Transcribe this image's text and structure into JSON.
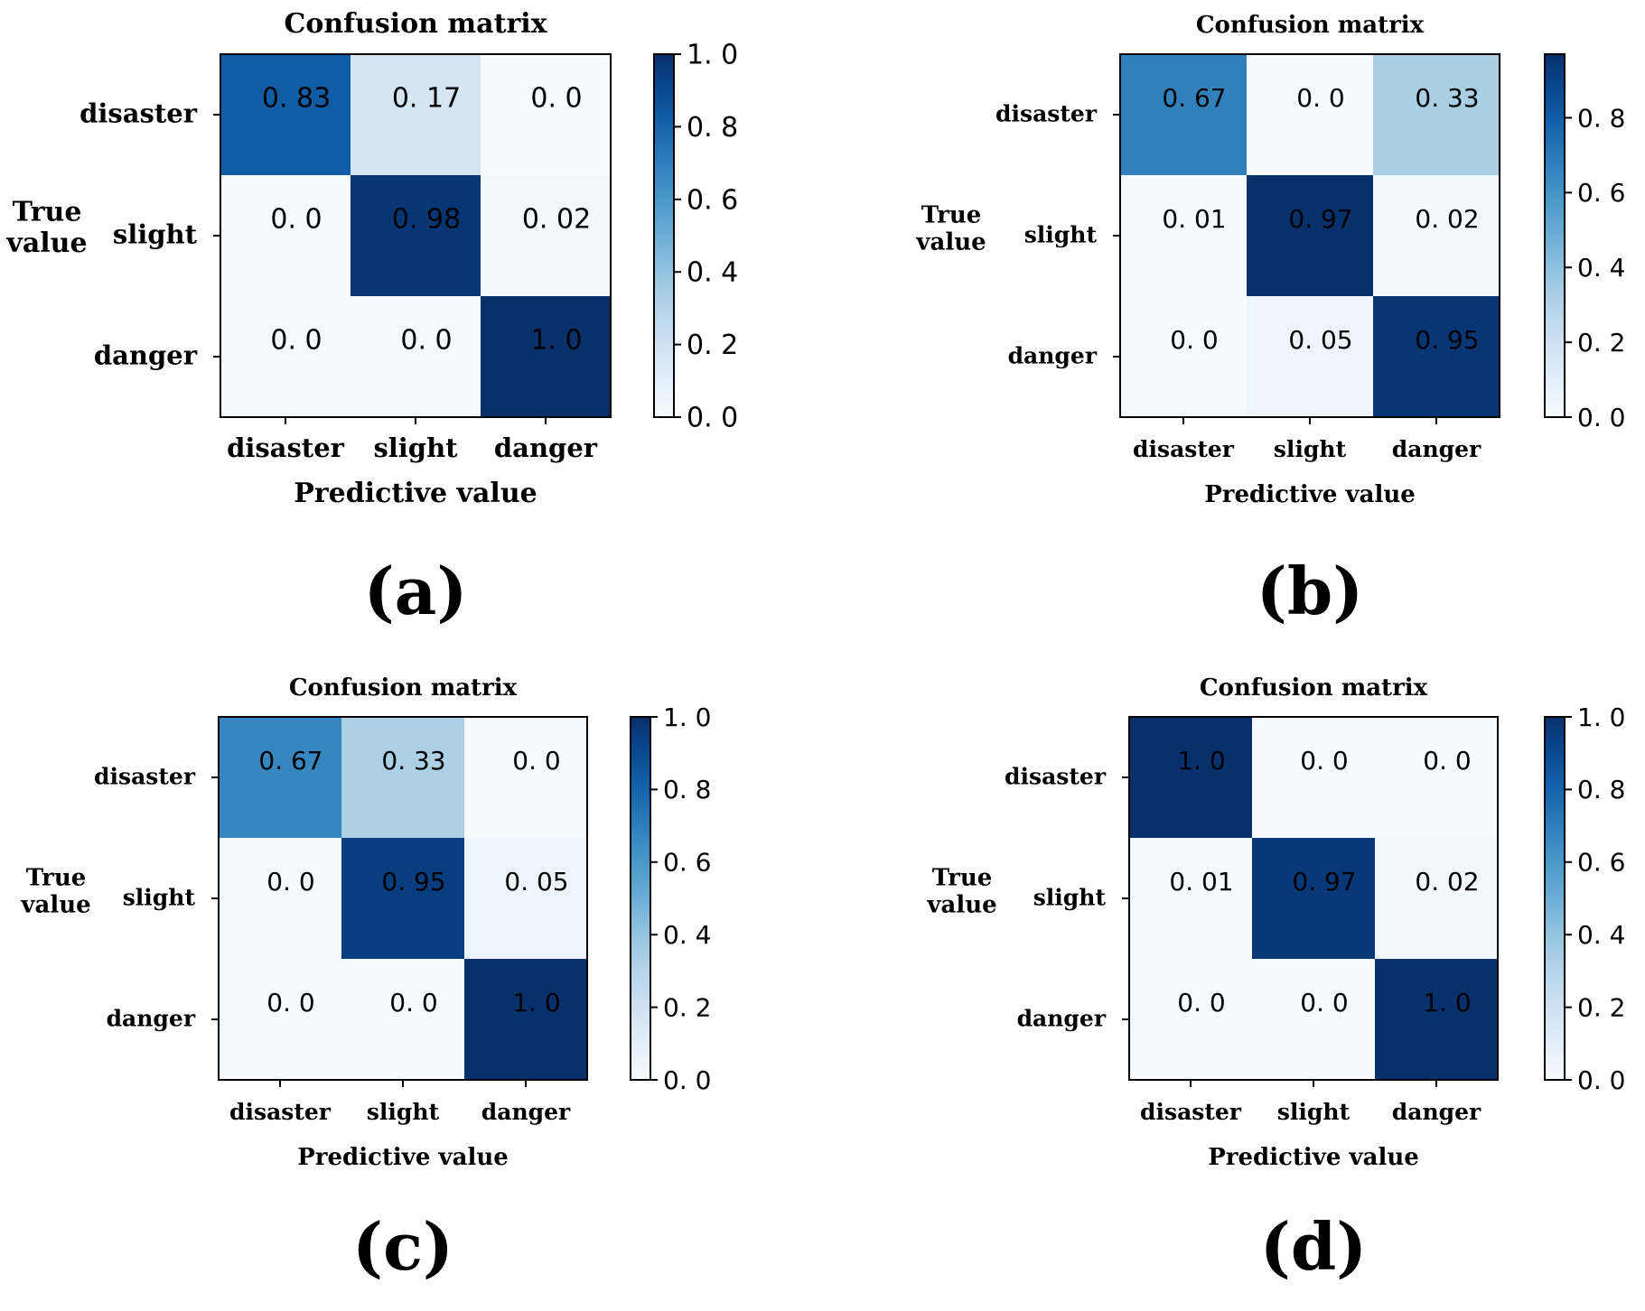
{
  "chart_data": [
    {
      "type": "heatmap",
      "panel_label": "(a)",
      "title": "Confusion matrix",
      "xlabel": "Predictive value",
      "ylabel_lines": [
        "True",
        "value"
      ],
      "categories": [
        "disaster",
        "slight",
        "danger"
      ],
      "cell_labels": [
        [
          "0. 83",
          "0. 17",
          "0. 0"
        ],
        [
          "0. 0",
          "0. 98",
          "0. 02"
        ],
        [
          "0. 0",
          "0. 0",
          "1. 0"
        ]
      ],
      "values": [
        [
          0.83,
          0.17,
          0.0
        ],
        [
          0.0,
          0.98,
          0.02
        ],
        [
          0.0,
          0.0,
          1.0
        ]
      ],
      "colorbar": {
        "range": [
          0,
          1.0
        ],
        "ticks": [
          0,
          0.2,
          0.4,
          0.6,
          0.8,
          1.0
        ],
        "tick_labels": [
          "0. 0",
          "0. 2",
          "0. 4",
          "0. 6",
          "0. 8",
          "1. 0"
        ]
      },
      "colormap": "Blues"
    },
    {
      "type": "heatmap",
      "panel_label": "(b)",
      "title": "Confusion matrix",
      "xlabel": "Predictive value",
      "ylabel_lines": [
        "True",
        "value"
      ],
      "categories": [
        "disaster",
        "slight",
        "danger"
      ],
      "cell_labels": [
        [
          "0. 67",
          "0. 0",
          "0. 33"
        ],
        [
          "0. 01",
          "0. 97",
          "0. 02"
        ],
        [
          "0. 0",
          "0. 05",
          "0. 95"
        ]
      ],
      "values": [
        [
          0.67,
          0.0,
          0.33
        ],
        [
          0.01,
          0.97,
          0.02
        ],
        [
          0.0,
          0.05,
          0.95
        ]
      ],
      "colorbar": {
        "range": [
          0,
          0.97
        ],
        "ticks": [
          0,
          0.2,
          0.4,
          0.6,
          0.8
        ],
        "tick_labels": [
          "0. 0",
          "0. 2",
          "0. 4",
          "0. 6",
          "0. 8"
        ]
      },
      "colormap": "Blues"
    },
    {
      "type": "heatmap",
      "panel_label": "(c)",
      "title": "Confusion matrix",
      "xlabel": "Predictive value",
      "ylabel_lines": [
        "True",
        "value"
      ],
      "categories": [
        "disaster",
        "slight",
        "danger"
      ],
      "cell_labels": [
        [
          "0. 67",
          "0. 33",
          "0. 0"
        ],
        [
          "0. 0",
          "0. 95",
          "0. 05"
        ],
        [
          "0. 0",
          "0. 0",
          "1. 0"
        ]
      ],
      "values": [
        [
          0.67,
          0.33,
          0.0
        ],
        [
          0.0,
          0.95,
          0.05
        ],
        [
          0.0,
          0.0,
          1.0
        ]
      ],
      "colorbar": {
        "range": [
          0,
          1.0
        ],
        "ticks": [
          0,
          0.2,
          0.4,
          0.6,
          0.8,
          1.0
        ],
        "tick_labels": [
          "0. 0",
          "0. 2",
          "0. 4",
          "0. 6",
          "0. 8",
          "1. 0"
        ]
      },
      "colormap": "Blues"
    },
    {
      "type": "heatmap",
      "panel_label": "(d)",
      "title": "Confusion matrix",
      "xlabel": "Predictive value",
      "ylabel_lines": [
        "True",
        "value"
      ],
      "categories": [
        "disaster",
        "slight",
        "danger"
      ],
      "cell_labels": [
        [
          "1. 0",
          "0. 0",
          "0. 0"
        ],
        [
          "0. 01",
          "0. 97",
          "0. 02"
        ],
        [
          "0. 0",
          "0. 0",
          "1. 0"
        ]
      ],
      "values": [
        [
          1.0,
          0.0,
          0.0
        ],
        [
          0.01,
          0.97,
          0.02
        ],
        [
          0.0,
          0.0,
          1.0
        ]
      ],
      "colorbar": {
        "range": [
          0,
          1.0
        ],
        "ticks": [
          0,
          0.2,
          0.4,
          0.6,
          0.8,
          1.0
        ],
        "tick_labels": [
          "0. 0",
          "0. 2",
          "0. 4",
          "0. 6",
          "0. 8",
          "1. 0"
        ]
      },
      "colormap": "Blues"
    }
  ]
}
